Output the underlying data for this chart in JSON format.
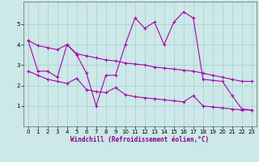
{
  "x": [
    0,
    1,
    2,
    3,
    4,
    5,
    6,
    7,
    8,
    9,
    10,
    11,
    12,
    13,
    14,
    15,
    16,
    17,
    18,
    19,
    20,
    21,
    22,
    23
  ],
  "zigzag": [
    4.2,
    2.7,
    2.7,
    2.4,
    4.0,
    3.5,
    2.6,
    1.0,
    2.5,
    2.5,
    4.0,
    5.3,
    4.8,
    5.1,
    4.0,
    5.1,
    5.6,
    5.3,
    2.3,
    2.25,
    2.2,
    1.5,
    0.85,
    0.8
  ],
  "upper_band": [
    4.2,
    3.95,
    3.85,
    3.75,
    4.0,
    3.55,
    3.45,
    3.35,
    3.25,
    3.2,
    3.1,
    3.05,
    3.0,
    2.9,
    2.85,
    2.8,
    2.75,
    2.7,
    2.6,
    2.5,
    2.4,
    2.3,
    2.2,
    2.2
  ],
  "lower_band": [
    2.7,
    2.5,
    2.3,
    2.2,
    2.1,
    2.35,
    1.8,
    1.7,
    1.65,
    1.9,
    1.55,
    1.45,
    1.4,
    1.35,
    1.3,
    1.25,
    1.2,
    1.5,
    1.0,
    0.95,
    0.9,
    0.85,
    0.8,
    0.8
  ],
  "color": "#aa00aa",
  "bg_color": "#cce8e8",
  "grid_color": "#aacece",
  "xlabel": "Windchill (Refroidissement éolien,°C)",
  "xlim": [
    -0.5,
    23.5
  ],
  "ylim": [
    0,
    6.1
  ],
  "yticks": [
    1,
    2,
    3,
    4,
    5
  ],
  "xticks": [
    0,
    1,
    2,
    3,
    4,
    5,
    6,
    7,
    8,
    9,
    10,
    11,
    12,
    13,
    14,
    15,
    16,
    17,
    18,
    19,
    20,
    21,
    22,
    23
  ],
  "xlabel_fontsize": 5.5,
  "tick_fontsize": 5.0
}
